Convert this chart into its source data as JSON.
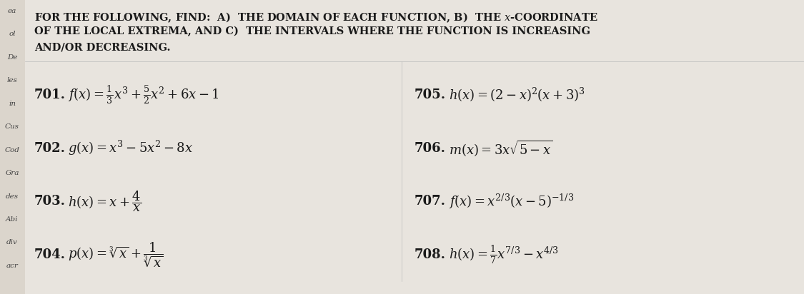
{
  "bg_main": "#e8e4de",
  "bg_content": "#f0ede8",
  "sidebar_color": "#dbd5cc",
  "text_color": "#1a1a1a",
  "title_lines": [
    "FOR THE FOLLOWING, FIND:  A)  THE DOMAIN OF EACH FUNCTION, B)  THE $x$-COORDINATE",
    "OF THE LOCAL EXTREMA, AND C)  THE INTERVALS WHERE THE FUNCTION IS INCREASING",
    "AND/OR DECREASING."
  ],
  "left_items": [
    {
      "num": "701.",
      "expr": "$f(x) = \\frac{1}{3}x^3 + \\frac{5}{2}x^2 + 6x - 1$"
    },
    {
      "num": "702.",
      "expr": "$g(x) = x^3 - 5x^2 - 8x$"
    },
    {
      "num": "703.",
      "expr": "$h(x) = x + \\dfrac{4}{x}$"
    },
    {
      "num": "704.",
      "expr": "$p(x) = \\sqrt[3]{x} + \\dfrac{1}{\\sqrt[3]{x}}$"
    }
  ],
  "right_items": [
    {
      "num": "705.",
      "expr": "$h(x) = (2-x)^2(x+3)^3$"
    },
    {
      "num": "706.",
      "expr": "$m(x) = 3x\\sqrt{5-x}$"
    },
    {
      "num": "707.",
      "expr": "$f(x) = x^{2/3}(x-5)^{-1/3}$"
    },
    {
      "num": "708.",
      "expr": "$h(x) = \\frac{1}{7}x^{7/3} - x^{4/3}$"
    }
  ],
  "sidebar_labels": [
    "ea",
    "ol",
    "De",
    "les",
    "in",
    "Cus",
    "Cod",
    "Gra",
    "des",
    "Abi",
    "div",
    "acr"
  ],
  "title_fontsize": 10.5,
  "item_fontsize": 13.0,
  "num_fontsize": 13.0
}
